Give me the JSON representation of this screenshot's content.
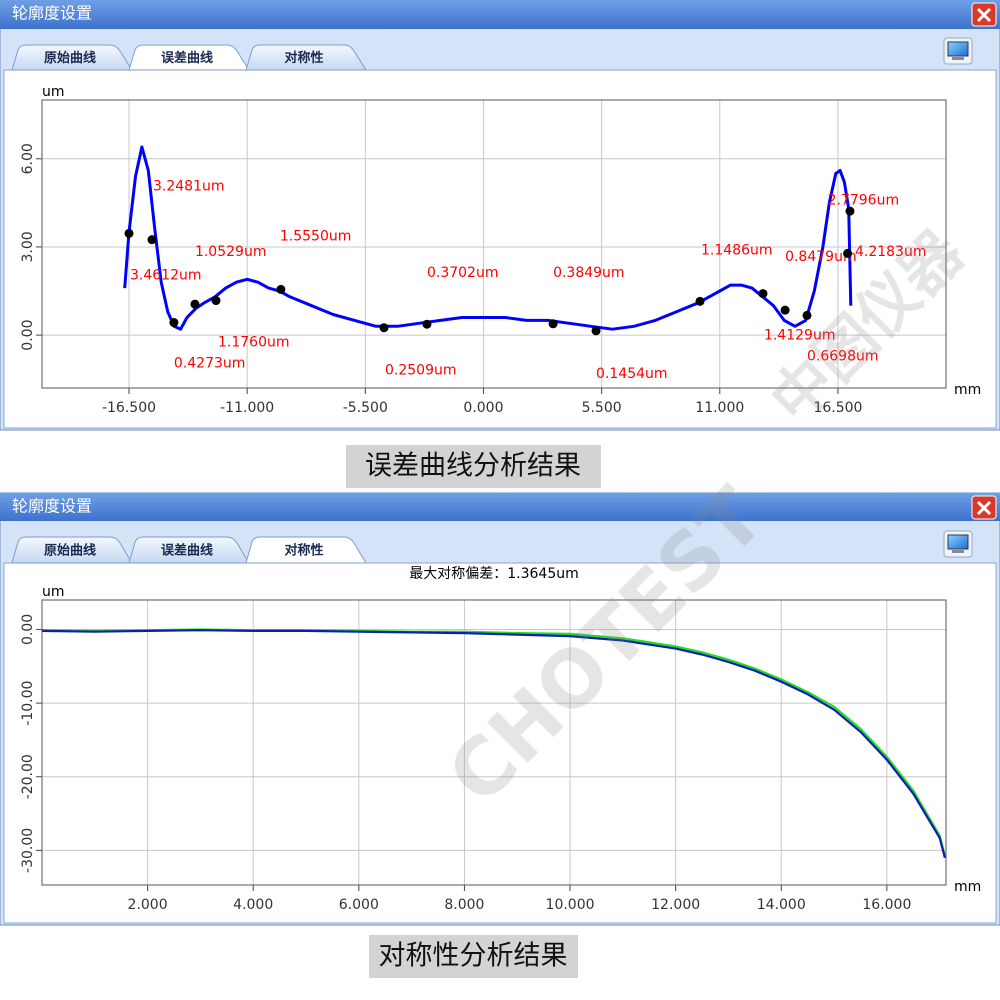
{
  "windows": [
    {
      "title": "轮廓度设置",
      "tabs": [
        "原始曲线",
        "误差曲线",
        "对称性"
      ],
      "active_tab": 1,
      "caption": "误差曲线分析结果"
    },
    {
      "title": "轮廓度设置",
      "tabs": [
        "原始曲线",
        "误差曲线",
        "对称性"
      ],
      "active_tab": 2,
      "caption": "对称性分析结果"
    }
  ],
  "watermark": [
    "CHOTEST",
    "中图仪器"
  ],
  "chart_data": [
    {
      "type": "line",
      "ylabel": "um",
      "xlabel": "mm",
      "grid": true,
      "color": "#0000ff",
      "x": [
        -16.7,
        -16.5,
        -16.2,
        -15.9,
        -15.6,
        -15.3,
        -15.0,
        -14.7,
        -14.4,
        -14.1,
        -13.8,
        -13.4,
        -13.0,
        -12.5,
        -12.0,
        -11.5,
        -11.0,
        -10.5,
        -10.0,
        -9.5,
        -9.0,
        -8.0,
        -7.0,
        -6.0,
        -5.0,
        -4.0,
        -3.0,
        -2.0,
        -1.0,
        0.0,
        1.0,
        2.0,
        3.0,
        4.0,
        5.0,
        6.0,
        7.0,
        8.0,
        9.0,
        10.0,
        10.5,
        11.0,
        11.5,
        12.0,
        12.5,
        13.0,
        13.5,
        14.0,
        14.5,
        15.0,
        15.4,
        15.8,
        16.1,
        16.4,
        16.6,
        16.8,
        17.0,
        17.1
      ],
      "values": [
        1.6,
        3.5,
        5.4,
        6.4,
        5.6,
        3.6,
        1.8,
        0.8,
        0.3,
        0.2,
        0.6,
        0.9,
        1.1,
        1.3,
        1.6,
        1.8,
        1.9,
        1.8,
        1.6,
        1.5,
        1.3,
        1.0,
        0.7,
        0.5,
        0.3,
        0.3,
        0.4,
        0.5,
        0.6,
        0.6,
        0.6,
        0.5,
        0.5,
        0.4,
        0.3,
        0.2,
        0.3,
        0.5,
        0.8,
        1.1,
        1.3,
        1.5,
        1.7,
        1.7,
        1.6,
        1.3,
        1.0,
        0.5,
        0.3,
        0.5,
        1.5,
        3.0,
        4.5,
        5.5,
        5.6,
        5.2,
        4.3,
        1.0
      ],
      "points": {
        "color": "#000000",
        "label_color": "#ff0000",
        "x": [
          -16.5,
          -15.43,
          -14.41,
          -13.43,
          -12.45,
          -9.43,
          -4.63,
          -2.63,
          3.24,
          5.24,
          10.08,
          13.01,
          14.04,
          15.06,
          17.06,
          16.95
        ],
        "values": [
          3.4612,
          3.2481,
          0.4273,
          1.0529,
          1.176,
          1.555,
          0.2509,
          0.3702,
          0.3849,
          0.1454,
          1.1486,
          1.4129,
          0.8479,
          0.6698,
          4.2183,
          2.7796
        ],
        "value_labels": [
          "3.4612um",
          "3.2481um",
          "0.4273um",
          "1.0529um",
          "1.1760um",
          "1.5550um",
          "0.2509um",
          "0.3702um",
          "0.3849um",
          "0.1454um",
          "1.1486um",
          "1.4129um",
          "0.8479um",
          "0.6698um",
          "4.2183um",
          "2.7796um"
        ]
      },
      "xlim": [
        -20.55,
        21.53
      ],
      "xticks": [
        {
          "value": -16.5,
          "label": "-16.500"
        },
        {
          "value": -11,
          "label": "-11.000"
        },
        {
          "value": -5.5,
          "label": "-5.500"
        },
        {
          "value": 0,
          "label": "0.000"
        },
        {
          "value": 5.5,
          "label": "5.500"
        },
        {
          "value": 11,
          "label": "11.000"
        },
        {
          "value": 16.5,
          "label": "16.500"
        }
      ],
      "ylim": [
        -1.8,
        8.0
      ],
      "yticks": [
        {
          "value": 0,
          "label": "0.00"
        },
        {
          "value": 3,
          "label": "3.00"
        },
        {
          "value": 6,
          "label": "6.00"
        }
      ]
    },
    {
      "type": "line",
      "title": "最大对称偏差：1.3645um",
      "ylabel": "um",
      "xlabel": "mm",
      "grid": true,
      "x": [
        0,
        1,
        2,
        3,
        4,
        5,
        6,
        7,
        8,
        9,
        10,
        11,
        12,
        12.5,
        13,
        13.5,
        14,
        14.5,
        15,
        15.5,
        16,
        16.5,
        17,
        17.1
      ],
      "series": [
        {
          "color": "#22dd22",
          "values": [
            -0.1,
            -0.2,
            -0.1,
            0.0,
            -0.1,
            -0.1,
            -0.2,
            -0.3,
            -0.3,
            -0.5,
            -0.6,
            -1.2,
            -2.3,
            -3.1,
            -4.1,
            -5.3,
            -6.8,
            -8.5,
            -10.5,
            -13.5,
            -17.3,
            -21.9,
            -28.0,
            -30.8
          ]
        },
        {
          "color": "#0a1fb0",
          "values": [
            -0.2,
            -0.3,
            -0.2,
            -0.1,
            -0.2,
            -0.2,
            -0.3,
            -0.4,
            -0.5,
            -0.7,
            -0.9,
            -1.5,
            -2.6,
            -3.4,
            -4.4,
            -5.6,
            -7.1,
            -8.8,
            -10.9,
            -13.9,
            -17.7,
            -22.3,
            -28.3,
            -31.0
          ]
        }
      ],
      "xlim": [
        0,
        17.12
      ],
      "xticks": [
        {
          "value": 2,
          "label": "2.000"
        },
        {
          "value": 4,
          "label": "4.000"
        },
        {
          "value": 6,
          "label": "6.000"
        },
        {
          "value": 8,
          "label": "8.000"
        },
        {
          "value": 10,
          "label": "10.000"
        },
        {
          "value": 12,
          "label": "12.000"
        },
        {
          "value": 14,
          "label": "14.000"
        },
        {
          "value": 16,
          "label": "16.000"
        }
      ],
      "ylim": [
        -34.7,
        4
      ],
      "yticks": [
        {
          "value": 0,
          "label": "0.00"
        },
        {
          "value": -10,
          "label": "-10.00"
        },
        {
          "value": -20,
          "label": "-20.00"
        },
        {
          "value": -30,
          "label": "-30.00"
        }
      ]
    }
  ]
}
